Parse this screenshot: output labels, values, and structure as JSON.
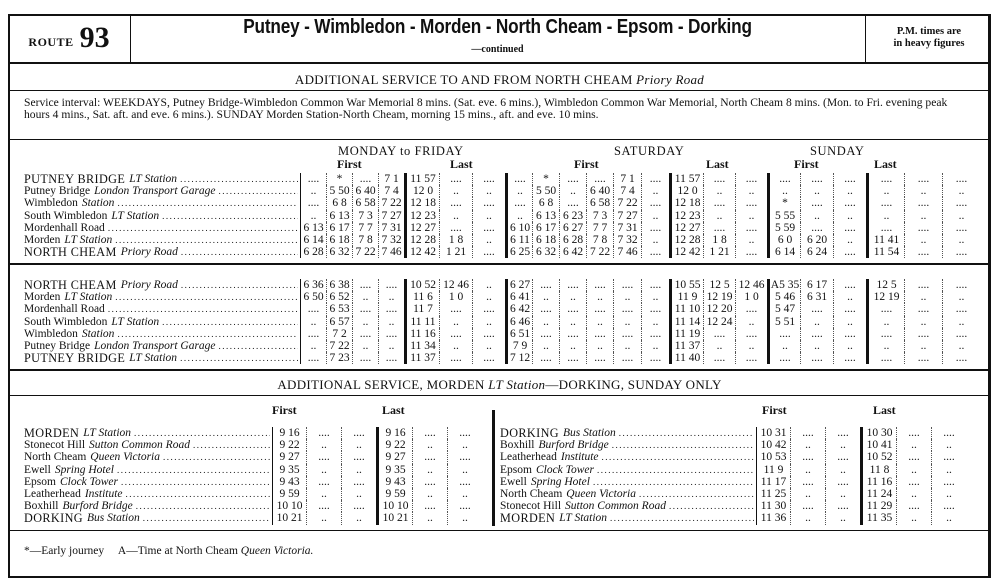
{
  "header": {
    "route_label": "ROUTE",
    "route_number": "93",
    "title": "Putney - Wimbledon - Morden - North Cheam - Epsom - Dorking",
    "continued": "—continued",
    "pm_note_line1": "P.M. times are",
    "pm_note_line2": "in heavy figures"
  },
  "north_cheam_section": {
    "heading": "ADDITIONAL SERVICE TO AND FROM NORTH CHEAM",
    "heading_italic": "Priory Road",
    "interval_text": "Service interval: WEEKDAYS, Putney Bridge-Wimbledon Common War Memorial 8 mins. (Sat. eve. 6 mins.), Wimbledon Common War Memorial, North Cheam 8 mins. (Mon. to Fri. evening peak hours 4 mins., Sat. aft. and eve. 6 mins.). SUNDAY Morden Station-North Cheam, morning 15 mins., aft. and eve. 10 mins.",
    "days": {
      "mon_fri": "MONDAY to FRIDAY",
      "saturday": "SATURDAY",
      "sunday": "SUNDAY"
    },
    "first_label": "First",
    "last_label": "Last",
    "outbound": [
      {
        "name": "PUTNEY BRIDGE",
        "italic": "LT Station",
        "caps": true,
        "times": [
          "....",
          "*",
          "....",
          "7 1",
          "11 57",
          "....",
          "....",
          "....",
          "*",
          "....",
          "....",
          "7 1",
          "....",
          "11 57",
          "....",
          "....",
          "....",
          "....",
          "....",
          "....",
          "....",
          "...."
        ]
      },
      {
        "name": "Putney Bridge",
        "italic": "London Transport Garage",
        "caps": false,
        "times": [
          "..",
          "5 50",
          "6 40",
          "7 4",
          "12 0",
          "..",
          "..",
          "..",
          "5 50",
          "..",
          "6 40",
          "7 4",
          "..",
          "12 0",
          "..",
          "..",
          "..",
          "..",
          "..",
          "..",
          "..",
          ".."
        ]
      },
      {
        "name": "Wimbledon",
        "italic": "Station",
        "caps": false,
        "times": [
          "....",
          "6 8",
          "6 58",
          "7 22",
          "12 18",
          "....",
          "....",
          "....",
          "6 8",
          "....",
          "6 58",
          "7 22",
          "....",
          "12 18",
          "....",
          "....",
          "*",
          "....",
          "....",
          "....",
          "....",
          "...."
        ]
      },
      {
        "name": "South Wimbledon",
        "italic": "LT Station",
        "caps": false,
        "times": [
          "..",
          "6 13",
          "7 3",
          "7 27",
          "12 23",
          "..",
          "..",
          "..",
          "6 13",
          "6 23",
          "7 3",
          "7 27",
          "..",
          "12 23",
          "..",
          "..",
          "5 55",
          "..",
          "..",
          "..",
          "..",
          ".."
        ]
      },
      {
        "name": "Mordenhall Road",
        "italic": "",
        "caps": false,
        "times": [
          "6 13",
          "6 17",
          "7 7",
          "7 31",
          "12 27",
          "....",
          "....",
          "6 10",
          "6 17",
          "6 27",
          "7 7",
          "7 31",
          "....",
          "12 27",
          "....",
          "....",
          "5 59",
          "....",
          "....",
          "....",
          "....",
          "...."
        ]
      },
      {
        "name": "Morden",
        "italic": "LT Station",
        "caps": false,
        "times": [
          "6 14",
          "6 18",
          "7 8",
          "7 32",
          "12 28",
          "1 8",
          "..",
          "6 11",
          "6 18",
          "6 28",
          "7 8",
          "7 32",
          "..",
          "12 28",
          "1 8",
          "..",
          "6 0",
          "6 20",
          "..",
          "11 41",
          "..",
          ".."
        ]
      },
      {
        "name": "NORTH CHEAM",
        "italic": "Priory Road",
        "caps": true,
        "times": [
          "6 28",
          "6 32",
          "7 22",
          "7 46",
          "12 42",
          "1 21",
          "....",
          "6 25",
          "6 32",
          "6 42",
          "7 22",
          "7 46",
          "....",
          "12 42",
          "1 21",
          "....",
          "6 14",
          "6 24",
          "....",
          "11 54",
          "....",
          "...."
        ]
      }
    ],
    "inbound": [
      {
        "name": "NORTH CHEAM",
        "italic": "Priory Road",
        "caps": true,
        "times": [
          "6 36",
          "6 38",
          "....",
          "....",
          "10 52",
          "12 46",
          "..",
          "6 27",
          "....",
          "....",
          "....",
          "....",
          "....",
          "10 55",
          "12 5",
          "12 46",
          "A5 35",
          "6 17",
          "....",
          "12 5",
          "....",
          "...."
        ]
      },
      {
        "name": "Morden",
        "italic": "LT Station",
        "caps": false,
        "times": [
          "6 50",
          "6 52",
          "..",
          "..",
          "11 6",
          "1 0",
          "..",
          "6 41",
          "..",
          "..",
          "..",
          "..",
          "..",
          "11 9",
          "12 19",
          "1 0",
          "5 46",
          "6 31",
          "..",
          "12 19",
          "..",
          ".."
        ]
      },
      {
        "name": "Mordenhall Road",
        "italic": "",
        "caps": false,
        "times": [
          "....",
          "6 53",
          "....",
          "....",
          "11 7",
          "....",
          "....",
          "6 42",
          "....",
          "....",
          "....",
          "....",
          "....",
          "11 10",
          "12 20",
          "....",
          "5 47",
          "....",
          "....",
          "....",
          "....",
          "...."
        ]
      },
      {
        "name": "South Wimbledon",
        "italic": "LT Station",
        "caps": false,
        "times": [
          "..",
          "6 57",
          "..",
          "..",
          "11 11",
          "..",
          "..",
          "6 46",
          "..",
          "..",
          "..",
          "..",
          "..",
          "11 14",
          "12 24",
          "..",
          "5 51",
          "..",
          "..",
          "..",
          "..",
          ".."
        ]
      },
      {
        "name": "Wimbledon",
        "italic": "Station",
        "caps": false,
        "times": [
          "....",
          "7 2",
          "....",
          "....",
          "11 16",
          "....",
          "....",
          "6 51",
          "....",
          "....",
          "....",
          "....",
          "....",
          "11 19",
          "....",
          "....",
          "....",
          "....",
          "....",
          "....",
          "....",
          "...."
        ]
      },
      {
        "name": "Putney Bridge",
        "italic": "London Transport Garage",
        "caps": false,
        "times": [
          "..",
          "7 22",
          "..",
          "..",
          "11 34",
          "..",
          "..",
          "7 9",
          "..",
          "..",
          "..",
          "..",
          "..",
          "11 37",
          "..",
          "..",
          "..",
          "..",
          "..",
          "..",
          "..",
          ".."
        ]
      },
      {
        "name": "PUTNEY BRIDGE",
        "italic": "LT Station",
        "caps": true,
        "times": [
          "....",
          "7 23",
          "....",
          "....",
          "11 37",
          "....",
          "....",
          "7 12",
          "....",
          "....",
          "....",
          "....",
          "....",
          "11 40",
          "....",
          "....",
          "....",
          "....",
          "....",
          "....",
          "....",
          "...."
        ]
      }
    ]
  },
  "dorking_section": {
    "heading": "ADDITIONAL SERVICE, MORDEN",
    "heading_italic": "LT Station",
    "heading_tail": "—DORKING, SUNDAY ONLY",
    "first_label": "First",
    "last_label": "Last",
    "to_dorking": [
      {
        "name": "MORDEN",
        "italic": "LT Station",
        "caps": true,
        "times": [
          "9 16",
          "....",
          "....",
          "9 16",
          "....",
          "...."
        ]
      },
      {
        "name": "Stonecot Hill",
        "italic": "Sutton Common Road",
        "caps": false,
        "times": [
          "9 22",
          "..",
          "..",
          "9 22",
          "..",
          ".."
        ]
      },
      {
        "name": "North Cheam",
        "italic": "Queen Victoria",
        "caps": false,
        "times": [
          "9 27",
          "....",
          "....",
          "9 27",
          "....",
          "...."
        ]
      },
      {
        "name": "Ewell",
        "italic": "Spring Hotel",
        "caps": false,
        "times": [
          "9 35",
          "..",
          "..",
          "9 35",
          "..",
          ".."
        ]
      },
      {
        "name": "Epsom",
        "italic": "Clock Tower",
        "caps": false,
        "times": [
          "9 43",
          "....",
          "....",
          "9 43",
          "....",
          "...."
        ]
      },
      {
        "name": "Leatherhead",
        "italic": "Institute",
        "caps": false,
        "times": [
          "9 59",
          "..",
          "..",
          "9 59",
          "..",
          ".."
        ]
      },
      {
        "name": "Boxhill",
        "italic": "Burford Bridge",
        "caps": false,
        "times": [
          "10 10",
          "....",
          "....",
          "10 10",
          "....",
          "...."
        ]
      },
      {
        "name": "DORKING",
        "italic": "Bus Station",
        "caps": true,
        "times": [
          "10 21",
          "..",
          "..",
          "10 21",
          "..",
          ".."
        ]
      }
    ],
    "to_morden": [
      {
        "name": "DORKING",
        "italic": "Bus Station",
        "caps": true,
        "times": [
          "10 31",
          "....",
          "....",
          "10 30",
          "....",
          "...."
        ]
      },
      {
        "name": "Boxhill",
        "italic": "Burford Bridge",
        "caps": false,
        "times": [
          "10 42",
          "..",
          "..",
          "10 41",
          "..",
          ".."
        ]
      },
      {
        "name": "Leatherhead",
        "italic": "Institute",
        "caps": false,
        "times": [
          "10 53",
          "....",
          "....",
          "10 52",
          "....",
          "...."
        ]
      },
      {
        "name": "Epsom",
        "italic": "Clock Tower",
        "caps": false,
        "times": [
          "11 9",
          "..",
          "..",
          "11 8",
          "..",
          ".."
        ]
      },
      {
        "name": "Ewell",
        "italic": "Spring Hotel",
        "caps": false,
        "times": [
          "11 17",
          "....",
          "....",
          "11 16",
          "....",
          "...."
        ]
      },
      {
        "name": "North Cheam",
        "italic": "Queen Victoria",
        "caps": false,
        "times": [
          "11 25",
          "..",
          "..",
          "11 24",
          "..",
          ".."
        ]
      },
      {
        "name": "Stonecot Hill",
        "italic": "Sutton Common Road",
        "caps": false,
        "times": [
          "11 30",
          "....",
          "....",
          "11 29",
          "....",
          "...."
        ]
      },
      {
        "name": "MORDEN",
        "italic": "LT Station",
        "caps": true,
        "times": [
          "11 36",
          "..",
          "..",
          "11 35",
          "..",
          ".."
        ]
      }
    ]
  },
  "footnotes": {
    "early": "*—Early journey",
    "a_note": "A—Time at North Cheam",
    "a_note_italic": "Queen Victoria."
  }
}
